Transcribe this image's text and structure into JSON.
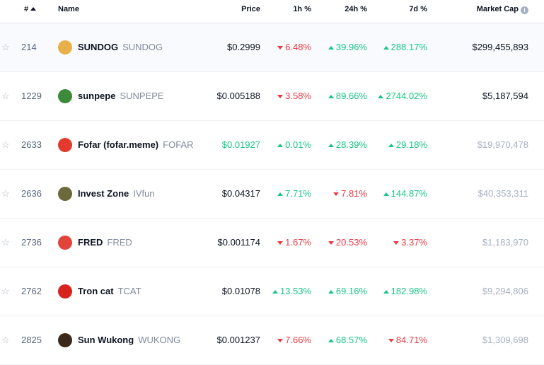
{
  "header": {
    "rank_label": "#",
    "name_label": "Name",
    "price_label": "Price",
    "h1_label": "1h %",
    "h24_label": "24h %",
    "d7_label": "7d %",
    "mcap_label": "Market Cap"
  },
  "colors": {
    "up": "#16c784",
    "down": "#ea3943",
    "muted": "#a6b0c3"
  },
  "rows": [
    {
      "rank": "214",
      "name": "SUNDOG",
      "symbol": "SUNDOG",
      "price": "$0.2999",
      "h1": "6.48%",
      "h1_dir": "down",
      "h24": "39.96%",
      "h24_dir": "up",
      "d7": "288.17%",
      "d7_dir": "up",
      "mcap": "$299,455,893",
      "mcap_muted": false,
      "price_color": "default",
      "logo": "dog-logo-icon",
      "logo_color": "#e8b04a"
    },
    {
      "rank": "1229",
      "name": "sunpepe",
      "symbol": "SUNPEPE",
      "price": "$0.005188",
      "h1": "3.58%",
      "h1_dir": "down",
      "h24": "89.66%",
      "h24_dir": "up",
      "d7": "2744.02%",
      "d7_dir": "up",
      "mcap": "$5,187,594",
      "mcap_muted": false,
      "price_color": "default",
      "logo": "frog-logo-icon",
      "logo_color": "#3c8a3a"
    },
    {
      "rank": "2633",
      "name": "Fofar (fofar.meme)",
      "symbol": "FOFAR",
      "price": "$0.01927",
      "h1": "0.01%",
      "h1_dir": "up",
      "h24": "28.39%",
      "h24_dir": "up",
      "d7": "29.18%",
      "d7_dir": "up",
      "mcap": "$19,970,478",
      "mcap_muted": true,
      "price_color": "up",
      "logo": "fofar-logo-icon",
      "logo_color": "#e23b2e"
    },
    {
      "rank": "2636",
      "name": "Invest Zone",
      "symbol": "IVfun",
      "price": "$0.04317",
      "h1": "7.71%",
      "h1_dir": "up",
      "h24": "7.81%",
      "h24_dir": "down",
      "d7": "144.87%",
      "d7_dir": "up",
      "mcap": "$40,353,311",
      "mcap_muted": true,
      "price_color": "default",
      "logo": "invest-zone-logo-icon",
      "logo_color": "#6b6a3a"
    },
    {
      "rank": "2736",
      "name": "FRED",
      "symbol": "FRED",
      "price": "$0.001174",
      "h1": "1.67%",
      "h1_dir": "down",
      "h24": "20.53%",
      "h24_dir": "down",
      "d7": "3.37%",
      "d7_dir": "down",
      "mcap": "$1,183,970",
      "mcap_muted": true,
      "price_color": "default",
      "logo": "fred-logo-icon",
      "logo_color": "#e0443a"
    },
    {
      "rank": "2762",
      "name": "Tron cat",
      "symbol": "TCAT",
      "price": "$0.01078",
      "h1": "13.53%",
      "h1_dir": "up",
      "h24": "69.16%",
      "h24_dir": "up",
      "d7": "182.98%",
      "d7_dir": "up",
      "mcap": "$9,294,806",
      "mcap_muted": true,
      "price_color": "default",
      "logo": "tron-cat-logo-icon",
      "logo_color": "#d8231c"
    },
    {
      "rank": "2825",
      "name": "Sun Wukong",
      "symbol": "WUKONG",
      "price": "$0.001237",
      "h1": "7.66%",
      "h1_dir": "down",
      "h24": "68.57%",
      "h24_dir": "up",
      "d7": "84.71%",
      "d7_dir": "down",
      "mcap": "$1,309,698",
      "mcap_muted": true,
      "price_color": "default",
      "logo": "wukong-logo-icon",
      "logo_color": "#3a2a1e"
    }
  ]
}
